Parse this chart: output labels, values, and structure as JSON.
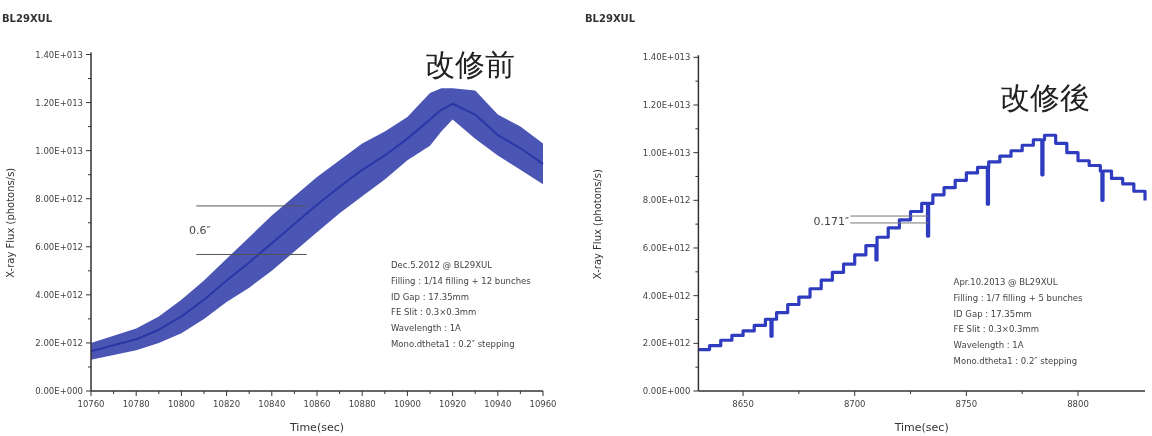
{
  "chart_data": [
    {
      "type": "line",
      "title": "BL29XUL",
      "xlabel": "Time(sec)",
      "ylabel": "X-ray Flux (photons/s)",
      "xlim": [
        10760,
        10960
      ],
      "xticks": [
        10760,
        10780,
        10800,
        10820,
        10840,
        10860,
        10880,
        10900,
        10920,
        10940,
        10960
      ],
      "ylim": [
        0,
        14000000000000.0
      ],
      "yticks": [
        {
          "value": 0,
          "label": "0.00E+000"
        },
        {
          "value": 2000000000000.0,
          "label": "2.00E+012"
        },
        {
          "value": 4000000000000.0,
          "label": "4.00E+012"
        },
        {
          "value": 6000000000000.0,
          "label": "6.00E+012"
        },
        {
          "value": 8000000000000.0,
          "label": "8.00E+012"
        },
        {
          "value": 10000000000000.0,
          "label": "1.00E+013"
        },
        {
          "value": 12000000000000.0,
          "label": "1.20E+013"
        },
        {
          "value": 14000000000000.0,
          "label": "1.40E+013"
        }
      ],
      "series": [
        {
          "color": "#2b37a6",
          "x": [
            10760,
            10770,
            10780,
            10790,
            10800,
            10810,
            10820,
            10830,
            10840,
            10850,
            10860,
            10870,
            10880,
            10890,
            10900,
            10910,
            10915,
            10920,
            10930,
            10940,
            10950,
            10960
          ],
          "values": [
            1650000000000.0,
            1900000000000.0,
            2150000000000.0,
            2550000000000.0,
            3100000000000.0,
            3800000000000.0,
            4600000000000.0,
            5350000000000.0,
            6150000000000.0,
            6950000000000.0,
            7750000000000.0,
            8500000000000.0,
            9200000000000.0,
            9800000000000.0,
            10500000000000.0,
            11300000000000.0,
            11700000000000.0,
            11950000000000.0,
            11500000000000.0,
            10650000000000.0,
            10100000000000.0,
            9450000000000.0
          ],
          "lower": [
            1300000000000.0,
            1500000000000.0,
            1700000000000.0,
            2000000000000.0,
            2400000000000.0,
            3000000000000.0,
            3700000000000.0,
            4300000000000.0,
            5000000000000.0,
            5800000000000.0,
            6600000000000.0,
            7400000000000.0,
            8100000000000.0,
            8800000000000.0,
            9600000000000.0,
            10200000000000.0,
            10800000000000.0,
            11300000000000.0,
            10500000000000.0,
            9800000000000.0,
            9200000000000.0,
            8600000000000.0
          ],
          "upper": [
            2000000000000.0,
            2300000000000.0,
            2600000000000.0,
            3100000000000.0,
            3800000000000.0,
            4600000000000.0,
            5500000000000.0,
            6400000000000.0,
            7300000000000.0,
            8100000000000.0,
            8900000000000.0,
            9600000000000.0,
            10300000000000.0,
            10800000000000.0,
            11400000000000.0,
            12400000000000.0,
            12600000000000.0,
            12600000000000.0,
            12500000000000.0,
            11500000000000.0,
            11000000000000.0,
            10300000000000.0
          ]
        },
        {
          "color": "#555555",
          "x": [
            10806.6,
            10855.4
          ],
          "values": [
            7700000000000.0,
            7700000000000.0
          ]
        },
        {
          "color": "#555555",
          "x": [
            10806.6,
            10855.4
          ],
          "values": [
            5680000000000.0,
            5680000000000.0
          ]
        }
      ],
      "annotations": [
        "改修前",
        "0.6″",
        "Dec.5.2012 @ BL29XUL",
        "Filling : 1/14 filling + 12 bunches",
        "ID Gap : 17.35mm",
        "FE Slit : 0.3×0.3mm",
        "Wavelength : 1A",
        "Mono.dtheta1 : 0.2″  stepping"
      ]
    },
    {
      "type": "step",
      "title": "BL29XUL",
      "xlabel": "Time(sec)",
      "ylabel": "X-ray Flux (photons/s)",
      "xlim": [
        8630,
        8830
      ],
      "xticks": [
        8650,
        8700,
        8750,
        8800
      ],
      "ylim": [
        0,
        14000000000000.0
      ],
      "yticks": [
        {
          "value": 0,
          "label": "0.00E+000"
        },
        {
          "value": 2000000000000.0,
          "label": "2.00E+012"
        },
        {
          "value": 4000000000000.0,
          "label": "4.00E+012"
        },
        {
          "value": 6000000000000.0,
          "label": "6.00E+012"
        },
        {
          "value": 8000000000000.0,
          "label": "8.00E+012"
        },
        {
          "value": 10000000000000.0,
          "label": "1.00E+013"
        },
        {
          "value": 12000000000000.0,
          "label": "1.20E+013"
        },
        {
          "value": 14000000000000.0,
          "label": "1.40E+013"
        }
      ],
      "series": [
        {
          "color": "#2f3cc0",
          "x": [
            8630,
            8635,
            8640,
            8645,
            8650,
            8655,
            8660,
            8662.5,
            8663,
            8665,
            8670,
            8675,
            8680,
            8685,
            8690,
            8695,
            8700,
            8705,
            8709.5,
            8710,
            8715,
            8720,
            8725,
            8730,
            8732.6,
            8733.1,
            8735,
            8740,
            8745,
            8750,
            8755,
            8759.4,
            8759.9,
            8760,
            8765,
            8770,
            8775,
            8780,
            8783.8,
            8784.3,
            8785,
            8790,
            8795,
            8800,
            8805,
            8810,
            8810.7,
            8811.2,
            8815,
            8820,
            8825,
            8830
          ],
          "values": [
            1740000000000.0,
            1900000000000.0,
            2130000000000.0,
            2330000000000.0,
            2520000000000.0,
            2750000000000.0,
            3010000000000.0,
            2300000000000.0,
            3010000000000.0,
            3290000000000.0,
            3630000000000.0,
            3940000000000.0,
            4290000000000.0,
            4650000000000.0,
            4980000000000.0,
            5320000000000.0,
            5710000000000.0,
            6100000000000.0,
            5500000000000.0,
            6450000000000.0,
            6840000000000.0,
            7180000000000.0,
            7530000000000.0,
            7870000000000.0,
            6500000000000.0,
            7870000000000.0,
            8230000000000.0,
            8530000000000.0,
            8840000000000.0,
            9150000000000.0,
            9380000000000.0,
            7840000000000.0,
            9380000000000.0,
            9610000000000.0,
            9850000000000.0,
            10080000000000.0,
            10310000000000.0,
            10540000000000.0,
            9070000000000.0,
            10540000000000.0,
            10730000000000.0,
            10390000000000.0,
            10000000000000.0,
            9660000000000.0,
            9460000000000.0,
            9230000000000.0,
            8000000000000.0,
            9230000000000.0,
            8920000000000.0,
            8690000000000.0,
            8380000000000.0,
            7990000000000.0
          ]
        },
        {
          "color": "#777777",
          "type": "line",
          "x": [
            8698,
            8733
          ],
          "values": [
            7340000000000.0,
            7340000000000.0
          ]
        },
        {
          "color": "#777777",
          "type": "line",
          "x": [
            8698,
            8733
          ],
          "values": [
            7050000000000.0,
            7050000000000.0
          ]
        }
      ],
      "annotations": [
        "改修後",
        "0.171″",
        "Apr.10.2013 @ BL29XUL",
        "Filling : 1/7 filling + 5 bunches",
        "ID Gap : 17.35mm",
        "FE Slit : 0.3×0.3mm",
        "Wavelength : 1A",
        "Mono.dtheta1 : 0.2″  stepping"
      ]
    }
  ]
}
